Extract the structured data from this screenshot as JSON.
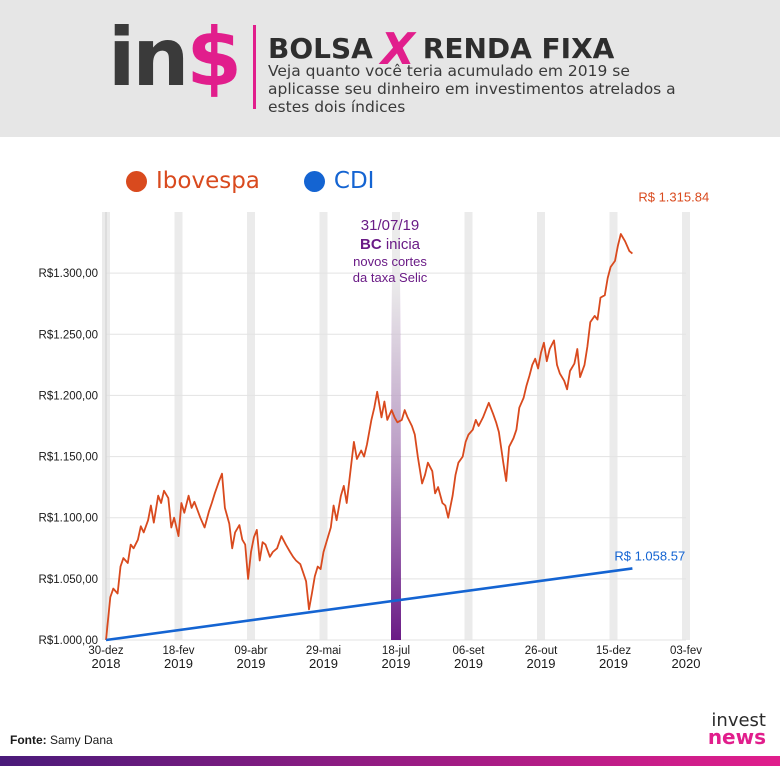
{
  "header": {
    "logo_part1": "in",
    "logo_part2": "$",
    "title_left": "BOLSA",
    "title_x": "X",
    "title_right": "RENDA FIXA",
    "subtitle": "Veja quanto você teria acumulado em 2019 se aplicasse seu dinheiro em investimentos atrelados a estes dois índices"
  },
  "colors": {
    "ibovespa": "#d94a1e",
    "cdi": "#1464d2",
    "brand_pink": "#e11e8c",
    "annotation": "#6a1b86",
    "header_bg": "#e6e6e6"
  },
  "footer": {
    "source_label": "Fonte:",
    "source_value": "Samy Dana",
    "brand_line1": "invest",
    "brand_line2": "news"
  },
  "chart_data": {
    "type": "line",
    "ylim": [
      1000,
      1350
    ],
    "yticks": [
      1000,
      1050,
      1100,
      1150,
      1200,
      1250,
      1300
    ],
    "ytick_labels": [
      "R$1.000,00",
      "R$1.050,00",
      "R$1.100,00",
      "R$1.150,00",
      "R$1.200,00",
      "R$1.250,00",
      "R$1.300,00"
    ],
    "xlim": [
      "2018-12-30",
      "2020-02-03"
    ],
    "xticks": [
      {
        "date": "2018-12-30",
        "day": "30-dez",
        "year": "2018"
      },
      {
        "date": "2019-02-18",
        "day": "18-fev",
        "year": "2019"
      },
      {
        "date": "2019-04-09",
        "day": "09-abr",
        "year": "2019"
      },
      {
        "date": "2019-05-29",
        "day": "29-mai",
        "year": "2019"
      },
      {
        "date": "2019-07-18",
        "day": "18-jul",
        "year": "2019"
      },
      {
        "date": "2019-09-06",
        "day": "06-set",
        "year": "2019"
      },
      {
        "date": "2019-10-26",
        "day": "26-out",
        "year": "2019"
      },
      {
        "date": "2019-12-15",
        "day": "15-dez",
        "year": "2019"
      },
      {
        "date": "2020-02-03",
        "day": "03-fev",
        "year": "2020"
      }
    ],
    "grid": true,
    "legend_position": "top-left",
    "series": [
      {
        "name": "Ibovespa",
        "color": "#d94a1e",
        "end_label": "R$ 1.315.84",
        "points": [
          [
            "2018-12-30",
            1000
          ],
          [
            "2019-01-02",
            1035
          ],
          [
            "2019-01-04",
            1042
          ],
          [
            "2019-01-07",
            1038
          ],
          [
            "2019-01-09",
            1060
          ],
          [
            "2019-01-11",
            1067
          ],
          [
            "2019-01-14",
            1063
          ],
          [
            "2019-01-16",
            1078
          ],
          [
            "2019-01-18",
            1075
          ],
          [
            "2019-01-21",
            1082
          ],
          [
            "2019-01-23",
            1093
          ],
          [
            "2019-01-25",
            1088
          ],
          [
            "2019-01-28",
            1098
          ],
          [
            "2019-01-30",
            1110
          ],
          [
            "2019-02-01",
            1096
          ],
          [
            "2019-02-04",
            1118
          ],
          [
            "2019-02-06",
            1112
          ],
          [
            "2019-02-08",
            1122
          ],
          [
            "2019-02-11",
            1116
          ],
          [
            "2019-02-13",
            1092
          ],
          [
            "2019-02-15",
            1100
          ],
          [
            "2019-02-18",
            1085
          ],
          [
            "2019-02-20",
            1112
          ],
          [
            "2019-02-22",
            1104
          ],
          [
            "2019-02-25",
            1118
          ],
          [
            "2019-02-27",
            1108
          ],
          [
            "2019-03-01",
            1113
          ],
          [
            "2019-03-05",
            1100
          ],
          [
            "2019-03-08",
            1092
          ],
          [
            "2019-03-11",
            1105
          ],
          [
            "2019-03-13",
            1112
          ],
          [
            "2019-03-15",
            1120
          ],
          [
            "2019-03-18",
            1130
          ],
          [
            "2019-03-20",
            1136
          ],
          [
            "2019-03-22",
            1108
          ],
          [
            "2019-03-25",
            1095
          ],
          [
            "2019-03-27",
            1075
          ],
          [
            "2019-03-29",
            1088
          ],
          [
            "2019-04-01",
            1094
          ],
          [
            "2019-04-03",
            1082
          ],
          [
            "2019-04-05",
            1078
          ],
          [
            "2019-04-07",
            1050
          ],
          [
            "2019-04-09",
            1072
          ],
          [
            "2019-04-11",
            1084
          ],
          [
            "2019-04-13",
            1090
          ],
          [
            "2019-04-15",
            1065
          ],
          [
            "2019-04-17",
            1080
          ],
          [
            "2019-04-19",
            1078
          ],
          [
            "2019-04-22",
            1068
          ],
          [
            "2019-04-24",
            1072
          ],
          [
            "2019-04-27",
            1075
          ],
          [
            "2019-04-30",
            1085
          ],
          [
            "2019-05-03",
            1078
          ],
          [
            "2019-05-06",
            1072
          ],
          [
            "2019-05-08",
            1068
          ],
          [
            "2019-05-10",
            1065
          ],
          [
            "2019-05-13",
            1062
          ],
          [
            "2019-05-15",
            1055
          ],
          [
            "2019-05-17",
            1048
          ],
          [
            "2019-05-19",
            1025
          ],
          [
            "2019-05-21",
            1038
          ],
          [
            "2019-05-23",
            1052
          ],
          [
            "2019-05-25",
            1060
          ],
          [
            "2019-05-27",
            1058
          ],
          [
            "2019-05-29",
            1072
          ],
          [
            "2019-05-31",
            1080
          ],
          [
            "2019-06-03",
            1092
          ],
          [
            "2019-06-05",
            1110
          ],
          [
            "2019-06-07",
            1098
          ],
          [
            "2019-06-10",
            1118
          ],
          [
            "2019-06-12",
            1126
          ],
          [
            "2019-06-14",
            1112
          ],
          [
            "2019-06-17",
            1142
          ],
          [
            "2019-06-19",
            1162
          ],
          [
            "2019-06-21",
            1148
          ],
          [
            "2019-06-24",
            1155
          ],
          [
            "2019-06-26",
            1150
          ],
          [
            "2019-06-28",
            1160
          ],
          [
            "2019-07-01",
            1180
          ],
          [
            "2019-07-03",
            1190
          ],
          [
            "2019-07-05",
            1203
          ],
          [
            "2019-07-08",
            1182
          ],
          [
            "2019-07-10",
            1195
          ],
          [
            "2019-07-12",
            1180
          ],
          [
            "2019-07-15",
            1188
          ],
          [
            "2019-07-17",
            1182
          ],
          [
            "2019-07-19",
            1178
          ],
          [
            "2019-07-22",
            1180
          ],
          [
            "2019-07-24",
            1188
          ],
          [
            "2019-07-26",
            1182
          ],
          [
            "2019-07-29",
            1175
          ],
          [
            "2019-07-31",
            1168
          ],
          [
            "2019-08-02",
            1150
          ],
          [
            "2019-08-05",
            1128
          ],
          [
            "2019-08-07",
            1135
          ],
          [
            "2019-08-09",
            1145
          ],
          [
            "2019-08-12",
            1138
          ],
          [
            "2019-08-14",
            1120
          ],
          [
            "2019-08-16",
            1125
          ],
          [
            "2019-08-19",
            1112
          ],
          [
            "2019-08-21",
            1110
          ],
          [
            "2019-08-23",
            1100
          ],
          [
            "2019-08-26",
            1118
          ],
          [
            "2019-08-28",
            1135
          ],
          [
            "2019-08-30",
            1145
          ],
          [
            "2019-09-02",
            1150
          ],
          [
            "2019-09-04",
            1162
          ],
          [
            "2019-09-06",
            1168
          ],
          [
            "2019-09-09",
            1172
          ],
          [
            "2019-09-11",
            1180
          ],
          [
            "2019-09-13",
            1175
          ],
          [
            "2019-09-16",
            1182
          ],
          [
            "2019-09-18",
            1188
          ],
          [
            "2019-09-20",
            1194
          ],
          [
            "2019-09-23",
            1185
          ],
          [
            "2019-09-25",
            1178
          ],
          [
            "2019-09-27",
            1170
          ],
          [
            "2019-09-30",
            1145
          ],
          [
            "2019-10-02",
            1130
          ],
          [
            "2019-10-04",
            1158
          ],
          [
            "2019-10-07",
            1165
          ],
          [
            "2019-10-09",
            1172
          ],
          [
            "2019-10-11",
            1190
          ],
          [
            "2019-10-14",
            1198
          ],
          [
            "2019-10-16",
            1208
          ],
          [
            "2019-10-18",
            1216
          ],
          [
            "2019-10-20",
            1225
          ],
          [
            "2019-10-22",
            1230
          ],
          [
            "2019-10-24",
            1222
          ],
          [
            "2019-10-26",
            1235
          ],
          [
            "2019-10-28",
            1243
          ],
          [
            "2019-10-30",
            1228
          ],
          [
            "2019-11-01",
            1238
          ],
          [
            "2019-11-04",
            1245
          ],
          [
            "2019-11-06",
            1225
          ],
          [
            "2019-11-08",
            1218
          ],
          [
            "2019-11-11",
            1212
          ],
          [
            "2019-11-13",
            1205
          ],
          [
            "2019-11-15",
            1220
          ],
          [
            "2019-11-18",
            1226
          ],
          [
            "2019-11-20",
            1238
          ],
          [
            "2019-11-22",
            1215
          ],
          [
            "2019-11-25",
            1225
          ],
          [
            "2019-11-27",
            1240
          ],
          [
            "2019-11-29",
            1260
          ],
          [
            "2019-12-02",
            1265
          ],
          [
            "2019-12-04",
            1262
          ],
          [
            "2019-12-06",
            1280
          ],
          [
            "2019-12-09",
            1282
          ],
          [
            "2019-12-11",
            1296
          ],
          [
            "2019-12-13",
            1305
          ],
          [
            "2019-12-16",
            1310
          ],
          [
            "2019-12-18",
            1322
          ],
          [
            "2019-12-20",
            1332
          ],
          [
            "2019-12-23",
            1326
          ],
          [
            "2019-12-26",
            1318
          ],
          [
            "2019-12-28",
            1316
          ]
        ]
      },
      {
        "name": "CDI",
        "color": "#1464d2",
        "end_label": "R$ 1.058.57",
        "points": [
          [
            "2018-12-30",
            1000
          ],
          [
            "2019-12-28",
            1058.57
          ]
        ]
      }
    ],
    "annotation": {
      "date": "2019-07-18",
      "line1": "31/07/19",
      "line2_bold": "BC",
      "line2_rest": " inicia",
      "line3": "novos cortes",
      "line4": "da taxa Selic"
    }
  }
}
